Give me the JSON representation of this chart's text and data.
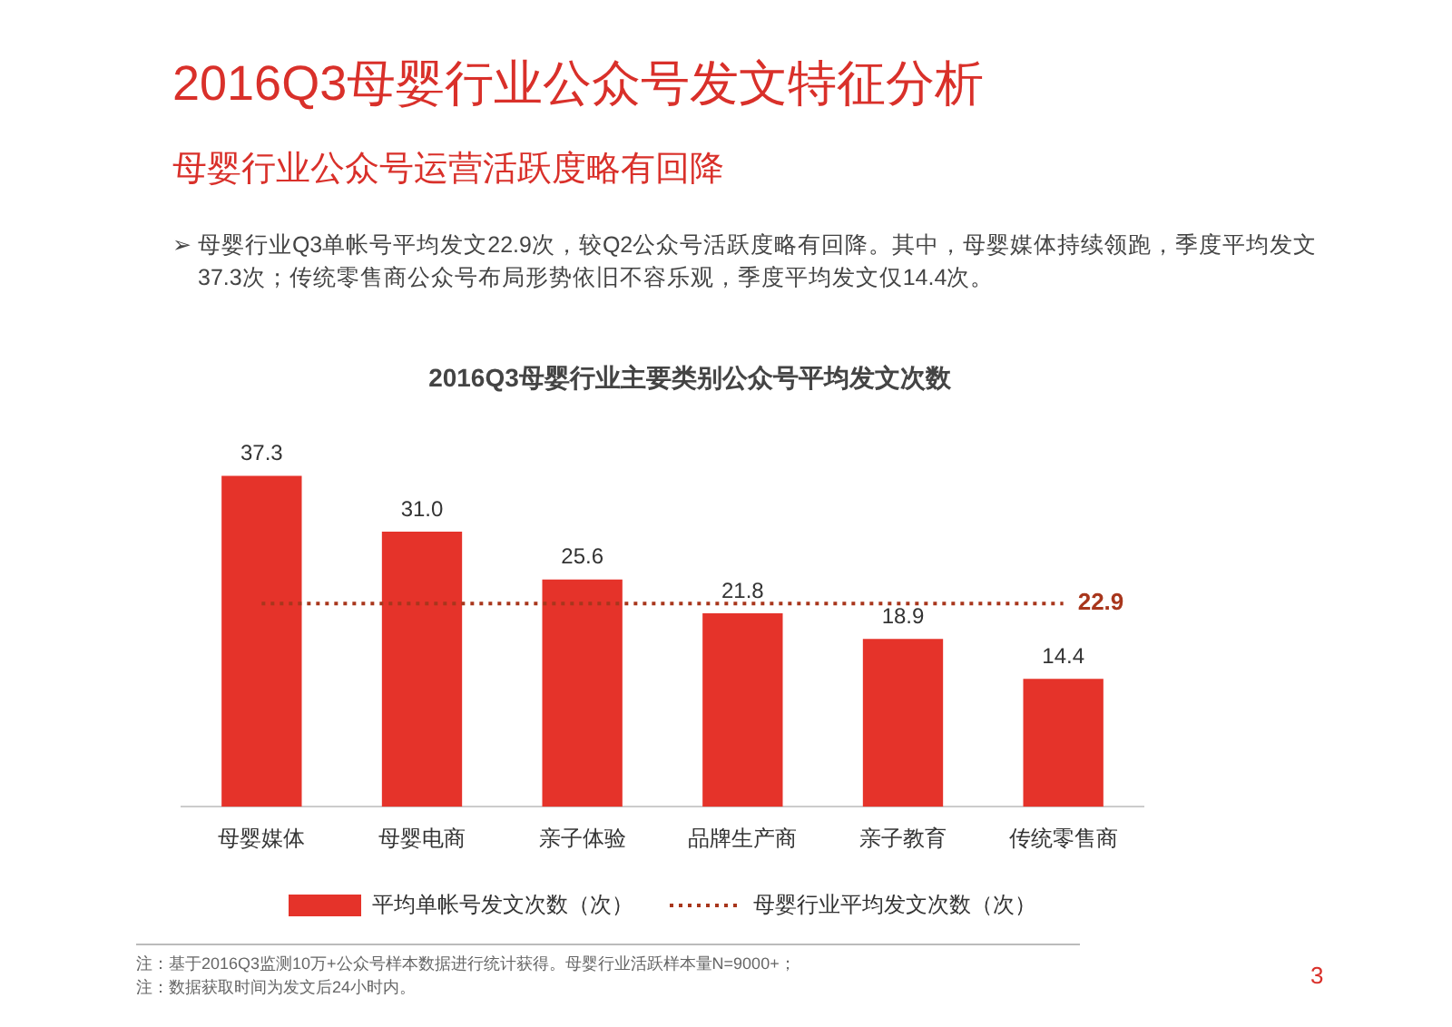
{
  "chart_data": {
    "type": "bar",
    "title": "2016Q3母婴行业公众号发文特征分析",
    "subtitle": "母婴行业公众号运营活跃度略有回降",
    "annotations": [
      "➢ 母婴行业Q3单帐号平均发文22.9次，较Q2公众号活跃度略有回降。其中，母婴媒体持续领跑，季度平均发文37.3次；传统零售商公众号布局形势依旧不容乐观，季度平均发文仅14.4次。",
      "2016Q3母婴行业主要类别公众号平均发文次数",
      "注：基于2016Q3监测10万+公众号样本数据进行统计获得。母婴行业活跃样本量N=9000+；",
      "注：数据获取时间为发文后24小时内。",
      "3"
    ],
    "categories": [
      "母婴媒体",
      "母婴电商",
      "亲子体验",
      "品牌生产商",
      "亲子教育",
      "传统零售商"
    ],
    "series": [
      {
        "name": "平均单帐号发文次数（次）",
        "color": "#e5332a",
        "values": [
          37.3,
          31.0,
          25.6,
          21.8,
          18.9,
          14.4
        ],
        "value_labels": [
          "37.3",
          "31.0",
          "25.6",
          "21.8",
          "18.9",
          "14.4"
        ]
      },
      {
        "name": "母婴行业平均发文次数（次）",
        "type": "line",
        "color": "#a8361c",
        "line_style": "dotted",
        "marker": "none",
        "values": [
          22.9,
          22.9,
          22.9,
          22.9,
          22.9,
          22.9
        ],
        "value_labels": [
          null,
          null,
          null,
          null,
          null,
          "22.9"
        ]
      }
    ],
    "legend": "bottom"
  }
}
